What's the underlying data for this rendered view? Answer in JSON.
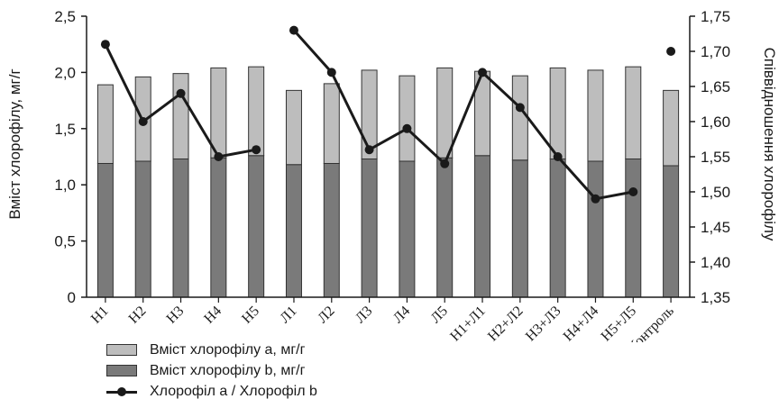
{
  "chart_data": {
    "type": "bar",
    "stacked": true,
    "categories": [
      "Н1",
      "Н2",
      "Н3",
      "Н4",
      "Н5",
      "Л1",
      "Л2",
      "Л3",
      "Л4",
      "Л5",
      "Н1+Л1",
      "Н2+Л2",
      "Н3+Л3",
      "Н4+Л4",
      "Н5+Л5",
      "Контроль"
    ],
    "series": [
      {
        "name": "Вміст хлорофілу b, мг/г",
        "color": "#7a7a7a",
        "axis": "left",
        "values": [
          1.19,
          1.21,
          1.23,
          1.24,
          1.26,
          1.18,
          1.19,
          1.23,
          1.21,
          1.24,
          1.26,
          1.22,
          1.23,
          1.21,
          1.23,
          1.17
        ]
      },
      {
        "name": "Вміст хлорофілу а, мг/г",
        "color": "#bdbdbd",
        "axis": "left",
        "values": [
          0.7,
          0.75,
          0.76,
          0.8,
          0.79,
          0.66,
          0.71,
          0.79,
          0.76,
          0.8,
          0.75,
          0.75,
          0.81,
          0.81,
          0.82,
          0.67
        ]
      },
      {
        "name": "Хлорофіл а / Хлорофіл b",
        "type": "line",
        "color": "#1a1a1a",
        "axis": "right",
        "values": [
          1.71,
          1.6,
          1.64,
          1.55,
          1.56,
          1.73,
          1.67,
          1.56,
          1.59,
          1.54,
          1.67,
          1.62,
          1.55,
          1.49,
          1.5,
          1.7
        ],
        "line_breaks_after": [
          "Н5",
          "Н5+Л5"
        ]
      }
    ],
    "ylabel": "Вміст хлорофілу, мг/г",
    "y2label": "Співвідношення хлорофілу",
    "ylim": [
      0,
      2.5
    ],
    "y2lim": [
      1.35,
      1.75
    ],
    "yticks": [
      "0",
      "0,5",
      "1,0",
      "1,5",
      "2,0",
      "2,5"
    ],
    "y2ticks": [
      "1,35",
      "1,40",
      "1,45",
      "1,50",
      "1,55",
      "1,60",
      "1,65",
      "1,70",
      "1,75"
    ],
    "grid": false,
    "legend_position": "bottom-left"
  },
  "legend": {
    "a_label": "Вміст хлорофілу а, мг/г",
    "b_label": "Вміст хлорофілу b, мг/г",
    "ratio_label": "Хлорофіл а / Хлорофіл b"
  }
}
